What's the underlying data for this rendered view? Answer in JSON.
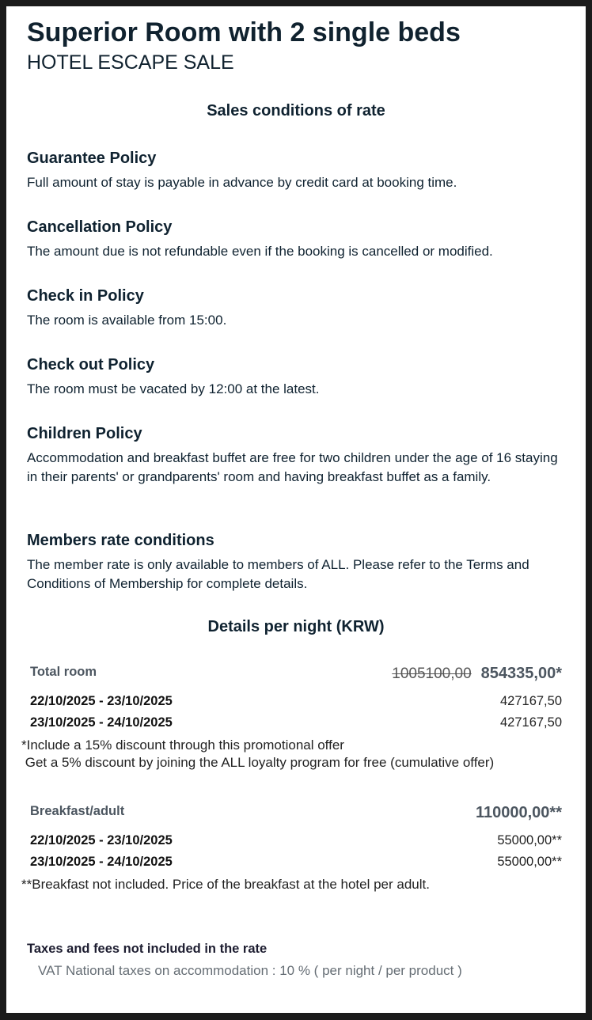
{
  "header": {
    "title": "Superior Room with 2 single beds",
    "subtitle": "HOTEL ESCAPE SALE"
  },
  "conditions": {
    "heading": "Sales conditions of rate",
    "sections": [
      {
        "title": "Guarantee Policy",
        "text": "Full amount of stay is payable in advance by credit card at booking time."
      },
      {
        "title": "Cancellation Policy",
        "text": "The amount due is not refundable even if the booking is cancelled or modified."
      },
      {
        "title": "Check in Policy",
        "text": "The room is available from 15:00."
      },
      {
        "title": "Check out Policy",
        "text": "The room must be vacated by 12:00 at the latest."
      },
      {
        "title": "Children Policy",
        "text": "Accommodation and breakfast buffet are free for two children under the age of 16 staying in their parents' or grandparents' room and having breakfast buffet as a family."
      },
      {
        "title": "Members rate conditions",
        "text": "The member rate is only available to members of ALL. Please refer to the Terms and Conditions of Membership for complete details."
      }
    ]
  },
  "details": {
    "heading": "Details per night (KRW)",
    "room": {
      "label": "Total room",
      "original_price": "1005100,00",
      "price": "854335,00*",
      "nights": [
        {
          "dates": "22/10/2025 - 23/10/2025",
          "price": "427167,50"
        },
        {
          "dates": "23/10/2025 - 24/10/2025",
          "price": "427167,50"
        }
      ],
      "notes": [
        "*Include a 15% discount through this promotional offer",
        " Get a 5% discount by joining the ALL loyalty program for free (cumulative offer)"
      ]
    },
    "breakfast": {
      "label": "Breakfast/adult",
      "price": "110000,00**",
      "nights": [
        {
          "dates": "22/10/2025 - 23/10/2025",
          "price": "55000,00**"
        },
        {
          "dates": "23/10/2025 - 24/10/2025",
          "price": "55000,00**"
        }
      ],
      "note": "**Breakfast not included. Price of the breakfast at the hotel per adult."
    }
  },
  "taxes": {
    "heading": "Taxes and fees not included in the rate",
    "text": "VAT National taxes on accommodation : 10 % ( per night / per product )"
  }
}
